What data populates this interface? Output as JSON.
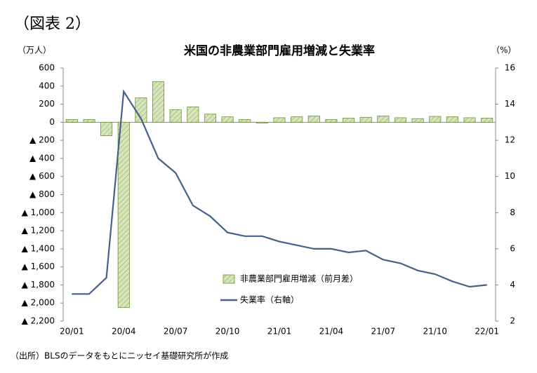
{
  "chart_data": {
    "type": "bar",
    "figure_label": "（図表 2）",
    "title": "米国の非農業部門雇用増減と失業率",
    "y_label": "（万人）",
    "y2_label": "（%）",
    "source": "（出所）BLSのデータをもとにニッセイ基礎研究所が作成",
    "categories": [
      "20/01",
      null,
      null,
      "20/04",
      null,
      null,
      "20/07",
      null,
      null,
      "20/10",
      null,
      null,
      "21/01",
      null,
      null,
      "21/04",
      null,
      null,
      "21/07",
      null,
      null,
      "21/10",
      null,
      null,
      "22/01"
    ],
    "series": [
      {
        "name": "非農業部門雇用増減（前月差）",
        "type": "bar",
        "color": "#d7e4bd",
        "values": [
          30,
          30,
          -150,
          -2050,
          270,
          450,
          140,
          170,
          90,
          60,
          30,
          -10,
          50,
          60,
          70,
          30,
          45,
          55,
          70,
          50,
          40,
          65,
          60,
          50,
          45
        ]
      },
      {
        "name": "失業率（右軸）",
        "type": "line",
        "axis": "y2",
        "color": "#44618a",
        "values": [
          3.5,
          3.5,
          4.4,
          14.7,
          13.2,
          11.0,
          10.2,
          8.4,
          7.8,
          6.9,
          6.7,
          6.7,
          6.4,
          6.2,
          6.0,
          6.0,
          5.8,
          5.9,
          5.4,
          5.2,
          4.8,
          4.6,
          4.2,
          3.9,
          4.0
        ]
      }
    ],
    "ylim": [
      -2200,
      600
    ],
    "yticks": [
      600,
      400,
      200,
      0,
      {
        "value": -200,
        "label": "▲ 200"
      },
      {
        "value": -400,
        "label": "▲ 400"
      },
      {
        "value": -600,
        "label": "▲ 600"
      },
      {
        "value": -800,
        "label": "▲ 800"
      },
      {
        "value": -1000,
        "label": "▲ 1,000"
      },
      {
        "value": -1200,
        "label": "▲ 1,200"
      },
      {
        "value": -1400,
        "label": "▲ 1,400"
      },
      {
        "value": -1600,
        "label": "▲ 1,600"
      },
      {
        "value": -1800,
        "label": "▲ 1,800"
      },
      {
        "value": -2000,
        "label": "▲ 2,000"
      },
      {
        "value": -2200,
        "label": "▲ 2,200"
      }
    ],
    "y2lim": [
      2,
      16
    ],
    "y2ticks": [
      16,
      14,
      12,
      10,
      8,
      6,
      4,
      2
    ],
    "grid": false
  }
}
